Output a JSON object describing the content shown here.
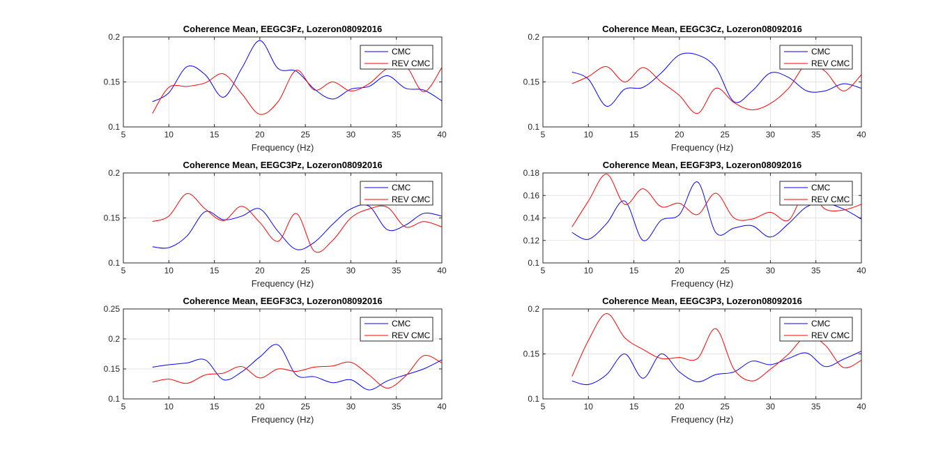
{
  "figure": {
    "background": "#ffffff",
    "series_colors": {
      "CMC": "#0000ff",
      "REV CMC": "#ff0000"
    }
  },
  "chart_data": [
    {
      "type": "line",
      "title": "Coherence Mean, EEGC3Fz, Lozeron08092016",
      "xlabel": "Frequency (Hz)",
      "ylabel": "",
      "xlim": [
        5,
        40
      ],
      "ylim": [
        0.1,
        0.2
      ],
      "xticks": [
        "5",
        "10",
        "15",
        "20",
        "25",
        "30",
        "35",
        "40"
      ],
      "yticks": [
        "0.1",
        "0.15",
        "0.2"
      ],
      "grid": true,
      "legend": {
        "position": "top-right",
        "entries": [
          "CMC",
          "REV CMC"
        ]
      },
      "x": [
        8.2,
        10,
        12,
        14,
        16,
        18,
        20,
        22,
        24,
        26,
        28,
        30,
        32,
        34,
        36,
        38,
        40
      ],
      "series": [
        {
          "name": "CMC",
          "color": "#0000ff",
          "values": [
            0.128,
            0.138,
            0.167,
            0.158,
            0.133,
            0.165,
            0.196,
            0.165,
            0.162,
            0.142,
            0.131,
            0.142,
            0.145,
            0.157,
            0.143,
            0.141,
            0.129
          ]
        },
        {
          "name": "REV CMC",
          "color": "#ff0000",
          "values": [
            0.115,
            0.144,
            0.145,
            0.149,
            0.159,
            0.137,
            0.114,
            0.128,
            0.163,
            0.141,
            0.15,
            0.14,
            0.148,
            0.165,
            0.168,
            0.139,
            0.166
          ]
        }
      ]
    },
    {
      "type": "line",
      "title": "Coherence Mean, EEGC3Cz, Lozeron08092016",
      "xlabel": "Frequency (Hz)",
      "ylabel": "",
      "xlim": [
        5,
        40
      ],
      "ylim": [
        0.1,
        0.2
      ],
      "xticks": [
        "5",
        "10",
        "15",
        "20",
        "25",
        "30",
        "35",
        "40"
      ],
      "yticks": [
        "0.1",
        "0.15",
        "0.2"
      ],
      "grid": true,
      "legend": {
        "position": "top-right",
        "entries": [
          "CMC",
          "REV CMC"
        ]
      },
      "x": [
        8.2,
        10,
        12,
        14,
        16,
        18,
        20,
        22,
        24,
        26,
        28,
        30,
        32,
        34,
        36,
        38,
        40
      ],
      "series": [
        {
          "name": "CMC",
          "color": "#0000ff",
          "values": [
            0.161,
            0.153,
            0.123,
            0.142,
            0.144,
            0.16,
            0.18,
            0.18,
            0.166,
            0.128,
            0.14,
            0.16,
            0.155,
            0.14,
            0.14,
            0.148,
            0.143
          ]
        },
        {
          "name": "REV CMC",
          "color": "#ff0000",
          "values": [
            0.148,
            0.156,
            0.167,
            0.15,
            0.166,
            0.15,
            0.135,
            0.115,
            0.143,
            0.127,
            0.119,
            0.126,
            0.143,
            0.17,
            0.162,
            0.14,
            0.158
          ]
        }
      ]
    },
    {
      "type": "line",
      "title": "Coherence Mean, EEGC3Pz, Lozeron08092016",
      "xlabel": "Frequency (Hz)",
      "ylabel": "",
      "xlim": [
        5,
        40
      ],
      "ylim": [
        0.1,
        0.2
      ],
      "xticks": [
        "5",
        "10",
        "15",
        "20",
        "25",
        "30",
        "35",
        "40"
      ],
      "yticks": [
        "0.1",
        "0.15",
        "0.2"
      ],
      "grid": true,
      "legend": {
        "position": "top-right",
        "entries": [
          "CMC",
          "REV CMC"
        ]
      },
      "x": [
        8.2,
        10,
        12,
        14,
        16,
        18,
        20,
        22,
        24,
        26,
        28,
        30,
        32,
        34,
        36,
        38,
        40
      ],
      "series": [
        {
          "name": "CMC",
          "color": "#0000ff",
          "values": [
            0.118,
            0.117,
            0.13,
            0.157,
            0.148,
            0.152,
            0.16,
            0.135,
            0.115,
            0.123,
            0.143,
            0.16,
            0.163,
            0.137,
            0.142,
            0.155,
            0.152
          ]
        },
        {
          "name": "REV CMC",
          "color": "#ff0000",
          "values": [
            0.146,
            0.152,
            0.177,
            0.16,
            0.147,
            0.163,
            0.145,
            0.124,
            0.155,
            0.113,
            0.125,
            0.15,
            0.16,
            0.162,
            0.14,
            0.146,
            0.14
          ]
        }
      ]
    },
    {
      "type": "line",
      "title": "Coherence Mean, EEGF3P3, Lozeron08092016",
      "xlabel": "Frequency (Hz)",
      "ylabel": "",
      "xlim": [
        5,
        40
      ],
      "ylim": [
        0.1,
        0.18
      ],
      "xticks": [
        "5",
        "10",
        "15",
        "20",
        "25",
        "30",
        "35",
        "40"
      ],
      "yticks": [
        "0.1",
        "0.12",
        "0.14",
        "0.16",
        "0.18"
      ],
      "grid": true,
      "legend": {
        "position": "top-right",
        "entries": [
          "CMC",
          "REV CMC"
        ]
      },
      "x": [
        8.2,
        10,
        12,
        14,
        16,
        18,
        20,
        22,
        24,
        26,
        28,
        30,
        32,
        34,
        36,
        38,
        40
      ],
      "series": [
        {
          "name": "CMC",
          "color": "#0000ff",
          "values": [
            0.127,
            0.121,
            0.135,
            0.155,
            0.12,
            0.138,
            0.143,
            0.172,
            0.127,
            0.131,
            0.133,
            0.123,
            0.135,
            0.15,
            0.153,
            0.148,
            0.139
          ]
        },
        {
          "name": "REV CMC",
          "color": "#ff0000",
          "values": [
            0.132,
            0.155,
            0.179,
            0.152,
            0.166,
            0.15,
            0.153,
            0.143,
            0.162,
            0.14,
            0.139,
            0.145,
            0.138,
            0.165,
            0.148,
            0.147,
            0.152
          ]
        }
      ]
    },
    {
      "type": "line",
      "title": "Coherence Mean, EEGF3C3, Lozeron08092016",
      "xlabel": "Frequency (Hz)",
      "ylabel": "",
      "xlim": [
        5,
        40
      ],
      "ylim": [
        0.1,
        0.25
      ],
      "xticks": [
        "5",
        "10",
        "15",
        "20",
        "25",
        "30",
        "35",
        "40"
      ],
      "yticks": [
        "0.1",
        "0.15",
        "0.2",
        "0.25"
      ],
      "grid": true,
      "legend": {
        "position": "top-right",
        "entries": [
          "CMC",
          "REV CMC"
        ]
      },
      "x": [
        8.2,
        10,
        12,
        14,
        16,
        18,
        20,
        22,
        24,
        26,
        28,
        30,
        32,
        34,
        36,
        38,
        40
      ],
      "series": [
        {
          "name": "CMC",
          "color": "#0000ff",
          "values": [
            0.153,
            0.157,
            0.16,
            0.165,
            0.132,
            0.145,
            0.17,
            0.19,
            0.14,
            0.137,
            0.127,
            0.132,
            0.115,
            0.13,
            0.14,
            0.15,
            0.165
          ]
        },
        {
          "name": "REV CMC",
          "color": "#ff0000",
          "values": [
            0.128,
            0.133,
            0.126,
            0.14,
            0.143,
            0.154,
            0.135,
            0.15,
            0.146,
            0.153,
            0.155,
            0.161,
            0.14,
            0.118,
            0.138,
            0.172,
            0.16
          ]
        }
      ]
    },
    {
      "type": "line",
      "title": "Coherence Mean, EEGC3P3, Lozeron08092016",
      "xlabel": "Frequency (Hz)",
      "ylabel": "",
      "xlim": [
        5,
        40
      ],
      "ylim": [
        0.1,
        0.2
      ],
      "xticks": [
        "5",
        "10",
        "15",
        "20",
        "25",
        "30",
        "35",
        "40"
      ],
      "yticks": [
        "0.1",
        "0.15",
        "0.2"
      ],
      "grid": true,
      "legend": {
        "position": "top-right",
        "entries": [
          "CMC",
          "REV CMC"
        ]
      },
      "x": [
        8.2,
        10,
        12,
        14,
        16,
        18,
        20,
        22,
        24,
        26,
        28,
        30,
        32,
        34,
        36,
        38,
        40
      ],
      "series": [
        {
          "name": "CMC",
          "color": "#0000ff",
          "values": [
            0.12,
            0.116,
            0.127,
            0.15,
            0.123,
            0.15,
            0.13,
            0.119,
            0.127,
            0.13,
            0.142,
            0.138,
            0.145,
            0.151,
            0.136,
            0.144,
            0.153
          ]
        },
        {
          "name": "REV CMC",
          "color": "#ff0000",
          "values": [
            0.125,
            0.165,
            0.195,
            0.168,
            0.155,
            0.145,
            0.146,
            0.145,
            0.178,
            0.133,
            0.12,
            0.133,
            0.15,
            0.17,
            0.16,
            0.135,
            0.143
          ]
        }
      ]
    }
  ]
}
